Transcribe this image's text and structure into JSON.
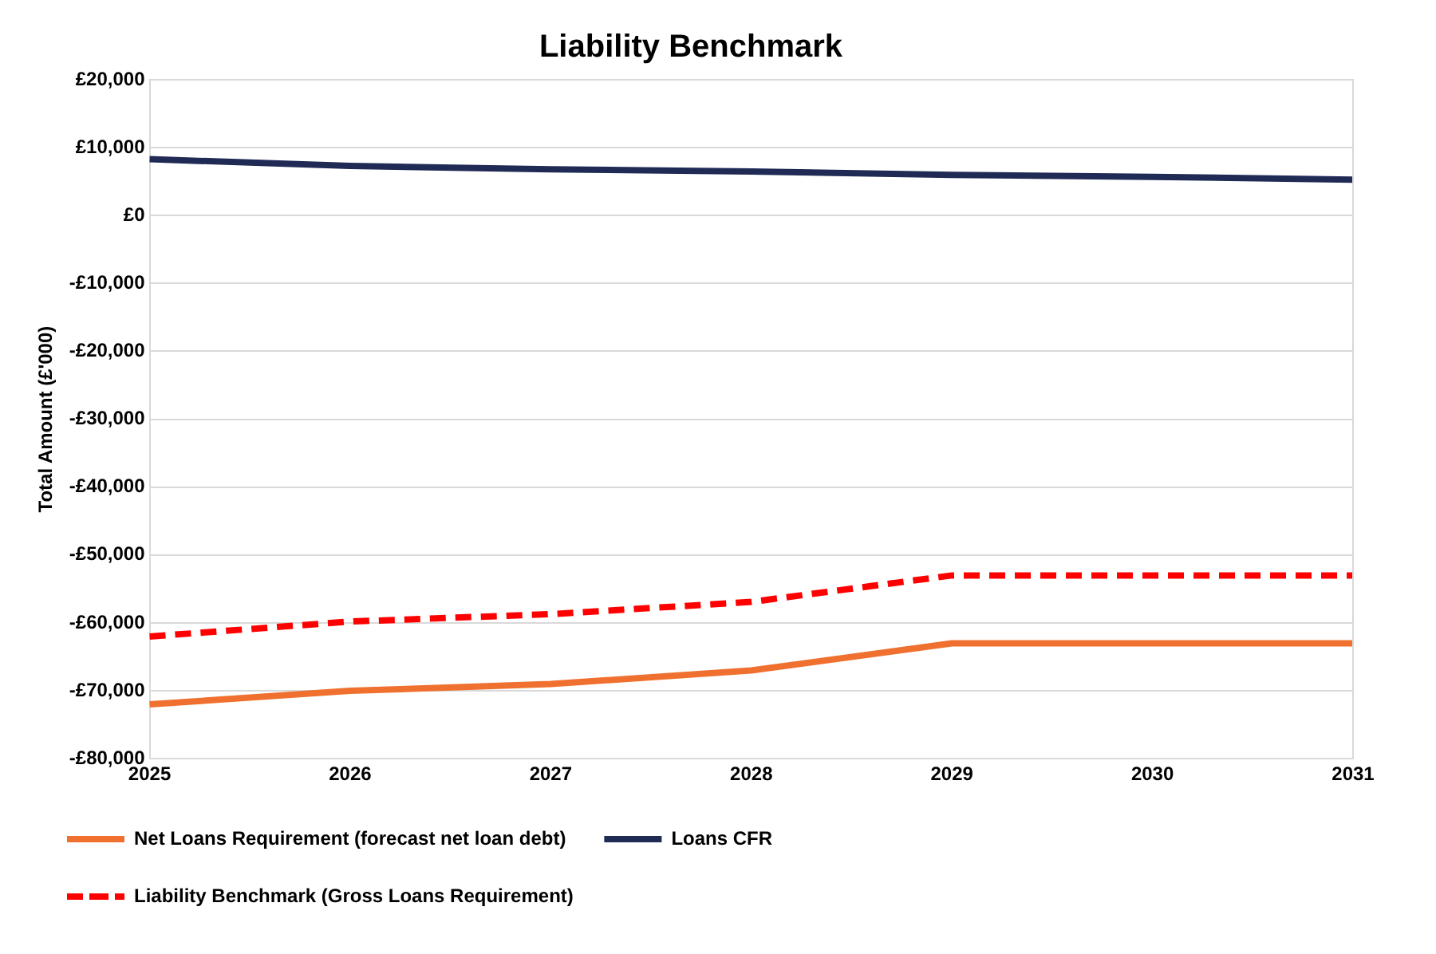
{
  "chart_data": {
    "type": "line",
    "title": "Liability Benchmark",
    "ylabel": "Total Amount (£'000)",
    "categories": [
      "2025",
      "2026",
      "2027",
      "2028",
      "2029",
      "2030",
      "2031"
    ],
    "series": [
      {
        "name": "Net Loans Requirement (forecast net loan debt)",
        "color": "#f07030",
        "line_style": "solid",
        "values": [
          -72000,
          -70000,
          -69000,
          -67000,
          -63000,
          -63000,
          -63000
        ]
      },
      {
        "name": "Loans CFR",
        "color": "#1f2a55",
        "line_style": "solid",
        "values": [
          8300,
          7300,
          6800,
          6500,
          6000,
          5700,
          5300
        ]
      },
      {
        "name": "Liability Benchmark (Gross Loans Requirement)",
        "color": "#ff0000",
        "line_style": "dashed",
        "values": [
          -62000,
          -59800,
          -58700,
          -56900,
          -53000,
          -53000,
          -53000
        ]
      }
    ],
    "ylim": [
      -80000,
      20000
    ],
    "yticks": [
      {
        "value": -80000,
        "label": "-£80,000"
      },
      {
        "value": -70000,
        "label": "-£70,000"
      },
      {
        "value": -60000,
        "label": "-£60,000"
      },
      {
        "value": -50000,
        "label": "-£50,000"
      },
      {
        "value": -40000,
        "label": "-£40,000"
      },
      {
        "value": -30000,
        "label": "-£30,000"
      },
      {
        "value": -20000,
        "label": "-£20,000"
      },
      {
        "value": -10000,
        "label": "-£10,000"
      },
      {
        "value": 0,
        "label": "£0"
      },
      {
        "value": 10000,
        "label": "£10,000"
      },
      {
        "value": 20000,
        "label": "£20,000"
      }
    ],
    "grid": "y",
    "legend": "bottom",
    "marker": "none"
  }
}
